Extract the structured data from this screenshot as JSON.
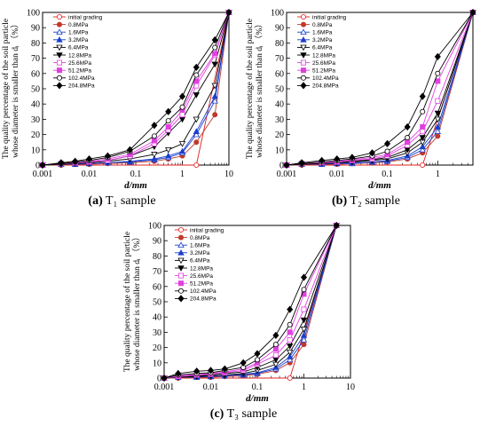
{
  "chart_data": [
    {
      "type": "line",
      "caption_letter": "(a)",
      "caption_text": "T₁ sample",
      "ylabel": [
        "The quality percentage of the soil particle",
        "whose diameter is smaller than dᵢ （%）"
      ],
      "xlabel": "d/mm",
      "x_scale": "log",
      "xlim": [
        0.001,
        10
      ],
      "ylim": [
        0,
        100
      ],
      "x_ticks": [
        0.001,
        0.01,
        0.1,
        1,
        10
      ],
      "x_tick_labels": [
        "0.001",
        "0.01",
        "0.1",
        "1",
        "10"
      ],
      "y_ticks": [
        0,
        10,
        20,
        30,
        40,
        50,
        60,
        70,
        80,
        90,
        100
      ],
      "legend_position": "top-left",
      "series": [
        {
          "name": "initial grading",
          "color": "#e02020",
          "marker": "circle-open",
          "x": [
            0.001,
            2,
            10
          ],
          "y": [
            0,
            0,
            100
          ]
        },
        {
          "name": "0.8MPa",
          "color": "#c0392b",
          "marker": "circle",
          "x": [
            0.001,
            0.0025,
            0.005,
            0.01,
            0.025,
            0.075,
            0.25,
            0.5,
            1,
            2,
            5,
            10
          ],
          "y": [
            0,
            0,
            0.5,
            0.5,
            1,
            1.5,
            2.5,
            4,
            6,
            15,
            33,
            100
          ]
        },
        {
          "name": "1.6MPa",
          "color": "#1a3fcc",
          "marker": "triangle-open",
          "x": [
            0.001,
            0.0025,
            0.005,
            0.01,
            0.025,
            0.075,
            0.25,
            0.5,
            1,
            2,
            5,
            10
          ],
          "y": [
            0,
            0.5,
            0.5,
            1,
            1.5,
            2,
            3.5,
            5,
            8,
            20,
            42,
            100
          ]
        },
        {
          "name": "3.2MPa",
          "color": "#1a3fcc",
          "marker": "triangle",
          "x": [
            0.001,
            0.0025,
            0.005,
            0.01,
            0.025,
            0.075,
            0.25,
            0.5,
            1,
            2,
            5,
            10
          ],
          "y": [
            0,
            0.5,
            0.5,
            1,
            1.5,
            2.5,
            4,
            6,
            9,
            22,
            45,
            100
          ]
        },
        {
          "name": "6.4MPa",
          "color": "#000000",
          "marker": "tri-down-open",
          "x": [
            0.001,
            0.0025,
            0.005,
            0.01,
            0.025,
            0.075,
            0.25,
            0.5,
            1,
            2,
            5,
            10
          ],
          "y": [
            0,
            0.5,
            1,
            1.5,
            2.5,
            4,
            7,
            10,
            14,
            30,
            52,
            100
          ]
        },
        {
          "name": "12.8MPa",
          "color": "#000000",
          "marker": "tri-down",
          "x": [
            0.001,
            0.0025,
            0.005,
            0.01,
            0.025,
            0.075,
            0.25,
            0.5,
            1,
            2,
            5,
            10
          ],
          "y": [
            0,
            0.5,
            1,
            2,
            3,
            6,
            12,
            21,
            30,
            46,
            66,
            100
          ]
        },
        {
          "name": "25.6MPa",
          "color": "#e040e0",
          "marker": "square-open",
          "x": [
            0.001,
            0.0025,
            0.005,
            0.01,
            0.025,
            0.075,
            0.25,
            0.5,
            1,
            2,
            5,
            10
          ],
          "y": [
            0,
            1,
            1.5,
            2,
            3,
            6,
            14,
            23,
            33,
            52,
            72,
            100
          ]
        },
        {
          "name": "51.2MPa",
          "color": "#e040e0",
          "marker": "square",
          "x": [
            0.001,
            0.0025,
            0.005,
            0.01,
            0.025,
            0.075,
            0.25,
            0.5,
            1,
            2,
            5,
            10
          ],
          "y": [
            0,
            1,
            1.5,
            2.5,
            4,
            7,
            16,
            25,
            36,
            55,
            73,
            100
          ]
        },
        {
          "name": "102.4MPa",
          "color": "#000000",
          "marker": "circle-open",
          "x": [
            0.001,
            0.0025,
            0.005,
            0.01,
            0.025,
            0.075,
            0.25,
            0.5,
            1,
            2,
            5,
            10
          ],
          "y": [
            0,
            1,
            2,
            3,
            5,
            9,
            19,
            29,
            38,
            59,
            77,
            100
          ]
        },
        {
          "name": "204.8MPa",
          "color": "#000000",
          "marker": "diamond",
          "x": [
            0.001,
            0.0025,
            0.005,
            0.01,
            0.025,
            0.075,
            0.25,
            0.5,
            1,
            2,
            5,
            10
          ],
          "y": [
            0,
            1.5,
            2.5,
            4,
            6,
            10,
            26,
            35,
            45,
            64,
            82,
            100
          ]
        }
      ]
    },
    {
      "type": "line",
      "caption_letter": "(b)",
      "caption_text": "T₂ sample",
      "ylabel": [
        "The quality percentage of the soil particle",
        "whose diameter is smaller than dᵢ （%）"
      ],
      "xlabel": "d/mm",
      "x_scale": "log",
      "xlim": [
        0.001,
        5
      ],
      "ylim": [
        0,
        100
      ],
      "x_ticks": [
        0.001,
        0.01,
        0.1,
        1
      ],
      "x_tick_labels": [
        "0.001",
        "0.01",
        "0.1",
        "1"
      ],
      "y_ticks": [
        0,
        10,
        20,
        30,
        40,
        50,
        60,
        70,
        80,
        90,
        100
      ],
      "legend_position": "top-left",
      "series": [
        {
          "name": "initial grading",
          "color": "#e02020",
          "marker": "circle-open",
          "x": [
            0.001,
            0.5,
            5
          ],
          "y": [
            0,
            0,
            100
          ]
        },
        {
          "name": "0.8MPa",
          "color": "#c0392b",
          "marker": "circle",
          "x": [
            0.001,
            0.002,
            0.005,
            0.01,
            0.02,
            0.05,
            0.1,
            0.25,
            0.5,
            1,
            5
          ],
          "y": [
            0,
            0,
            0.5,
            0.5,
            1,
            1.5,
            2,
            4,
            8,
            19,
            100
          ]
        },
        {
          "name": "1.6MPa",
          "color": "#1a3fcc",
          "marker": "triangle-open",
          "x": [
            0.001,
            0.002,
            0.005,
            0.01,
            0.02,
            0.05,
            0.1,
            0.25,
            0.5,
            1,
            5
          ],
          "y": [
            0,
            0.5,
            0.5,
            1,
            1,
            2,
            2.5,
            5,
            10,
            22,
            100
          ]
        },
        {
          "name": "3.2MPa",
          "color": "#1a3fcc",
          "marker": "triangle",
          "x": [
            0.001,
            0.002,
            0.005,
            0.01,
            0.02,
            0.05,
            0.1,
            0.25,
            0.5,
            1,
            5
          ],
          "y": [
            0,
            0.5,
            1,
            1,
            1.5,
            2,
            3,
            6,
            12,
            25,
            100
          ]
        },
        {
          "name": "6.4MPa",
          "color": "#000000",
          "marker": "tri-down-open",
          "x": [
            0.001,
            0.002,
            0.005,
            0.01,
            0.02,
            0.05,
            0.1,
            0.25,
            0.5,
            1,
            5
          ],
          "y": [
            0,
            0.5,
            1,
            1.5,
            2,
            3,
            4,
            8,
            15,
            30,
            100
          ]
        },
        {
          "name": "12.8MPa",
          "color": "#000000",
          "marker": "tri-down",
          "x": [
            0.001,
            0.002,
            0.005,
            0.01,
            0.02,
            0.05,
            0.1,
            0.25,
            0.5,
            1,
            5
          ],
          "y": [
            0,
            0.5,
            1,
            2,
            2.5,
            3.5,
            5,
            10,
            18,
            34,
            100
          ]
        },
        {
          "name": "25.6MPa",
          "color": "#e040e0",
          "marker": "square-open",
          "x": [
            0.001,
            0.002,
            0.005,
            0.01,
            0.02,
            0.05,
            0.1,
            0.25,
            0.5,
            1,
            5
          ],
          "y": [
            0,
            1,
            1.5,
            2,
            3,
            4,
            6,
            13,
            22,
            42,
            100
          ]
        },
        {
          "name": "51.2MPa",
          "color": "#e040e0",
          "marker": "square",
          "x": [
            0.001,
            0.002,
            0.005,
            0.01,
            0.02,
            0.05,
            0.1,
            0.25,
            0.5,
            1,
            5
          ],
          "y": [
            0,
            1,
            2,
            2.5,
            3.5,
            5,
            7,
            15,
            25,
            55,
            100
          ]
        },
        {
          "name": "102.4MPa",
          "color": "#000000",
          "marker": "circle-open",
          "x": [
            0.001,
            0.002,
            0.005,
            0.01,
            0.02,
            0.05,
            0.1,
            0.25,
            0.5,
            1,
            5
          ],
          "y": [
            0,
            1,
            2,
            3,
            4,
            6,
            9,
            18,
            35,
            60,
            100
          ]
        },
        {
          "name": "204.8MPa",
          "color": "#000000",
          "marker": "diamond",
          "x": [
            0.001,
            0.002,
            0.005,
            0.01,
            0.02,
            0.05,
            0.1,
            0.25,
            0.5,
            1,
            5
          ],
          "y": [
            0,
            1.5,
            3,
            4,
            5,
            8,
            14,
            25,
            45,
            71,
            100
          ]
        }
      ]
    },
    {
      "type": "line",
      "caption_letter": "(c)",
      "caption_text": "T₃ sample",
      "ylabel": [
        "The quality percentage of the soil particle",
        "whose diameter is smaller than dᵢ （%）"
      ],
      "xlabel": "d/mm",
      "x_scale": "log",
      "xlim": [
        0.001,
        10
      ],
      "ylim": [
        0,
        100
      ],
      "x_ticks": [
        0.001,
        0.01,
        0.1,
        1,
        10
      ],
      "x_tick_labels": [
        "0.001",
        "0.01",
        "0.1",
        "1",
        "10"
      ],
      "y_ticks": [
        0,
        10,
        20,
        30,
        40,
        50,
        60,
        70,
        80,
        90,
        100
      ],
      "legend_position": "top-left",
      "series": [
        {
          "name": "initial grading",
          "color": "#e02020",
          "marker": "circle-open",
          "x": [
            0.001,
            0.5,
            5
          ],
          "y": [
            0,
            0,
            100
          ]
        },
        {
          "name": "0.8MPa",
          "color": "#c0392b",
          "marker": "circle",
          "x": [
            0.001,
            0.002,
            0.005,
            0.01,
            0.02,
            0.05,
            0.1,
            0.25,
            0.5,
            1,
            5
          ],
          "y": [
            0,
            0,
            0.5,
            0.5,
            1,
            1.5,
            2.5,
            5,
            10,
            22,
            100
          ]
        },
        {
          "name": "1.6MPa",
          "color": "#1a3fcc",
          "marker": "triangle-open",
          "x": [
            0.001,
            0.002,
            0.005,
            0.01,
            0.02,
            0.05,
            0.1,
            0.25,
            0.5,
            1,
            5
          ],
          "y": [
            0,
            0.5,
            0.5,
            1,
            1.5,
            2,
            3,
            6,
            12,
            25,
            100
          ]
        },
        {
          "name": "3.2MPa",
          "color": "#1a3fcc",
          "marker": "triangle",
          "x": [
            0.001,
            0.002,
            0.005,
            0.01,
            0.02,
            0.05,
            0.1,
            0.25,
            0.5,
            1,
            5
          ],
          "y": [
            0,
            0.5,
            1,
            1,
            1.5,
            2.5,
            3.5,
            7,
            14,
            28,
            100
          ]
        },
        {
          "name": "6.4MPa",
          "color": "#000000",
          "marker": "tri-down-open",
          "x": [
            0.001,
            0.002,
            0.005,
            0.01,
            0.02,
            0.05,
            0.1,
            0.25,
            0.5,
            1,
            5
          ],
          "y": [
            0,
            0.5,
            1,
            1.5,
            2,
            3,
            5,
            9,
            17,
            32,
            100
          ]
        },
        {
          "name": "12.8MPa",
          "color": "#000000",
          "marker": "tri-down",
          "x": [
            0.001,
            0.002,
            0.005,
            0.01,
            0.02,
            0.05,
            0.1,
            0.25,
            0.5,
            1,
            5
          ],
          "y": [
            0,
            1,
            1.5,
            2,
            3,
            4,
            7,
            12,
            21,
            38,
            100
          ]
        },
        {
          "name": "25.6MPa",
          "color": "#e040e0",
          "marker": "square-open",
          "x": [
            0.001,
            0.002,
            0.005,
            0.01,
            0.02,
            0.05,
            0.1,
            0.25,
            0.5,
            1,
            5
          ],
          "y": [
            0,
            1,
            2,
            2.5,
            3.5,
            5,
            9,
            15,
            25,
            45,
            100
          ]
        },
        {
          "name": "51.2MPa",
          "color": "#e040e0",
          "marker": "square",
          "x": [
            0.001,
            0.002,
            0.005,
            0.01,
            0.02,
            0.05,
            0.1,
            0.25,
            0.5,
            1,
            5
          ],
          "y": [
            0,
            1.5,
            2.5,
            3,
            4,
            6,
            10,
            19,
            30,
            55,
            100
          ]
        },
        {
          "name": "102.4MPa",
          "color": "#000000",
          "marker": "circle-open",
          "x": [
            0.001,
            0.002,
            0.005,
            0.01,
            0.02,
            0.05,
            0.1,
            0.25,
            0.5,
            1,
            5
          ],
          "y": [
            0,
            2,
            3,
            3.5,
            5,
            7,
            12,
            22,
            35,
            58,
            100
          ]
        },
        {
          "name": "204.8MPa",
          "color": "#000000",
          "marker": "diamond",
          "x": [
            0.001,
            0.002,
            0.005,
            0.01,
            0.02,
            0.05,
            0.1,
            0.25,
            0.5,
            1,
            5
          ],
          "y": [
            0,
            3,
            4.5,
            5,
            6,
            10,
            16,
            28,
            45,
            66,
            100
          ]
        }
      ]
    }
  ]
}
